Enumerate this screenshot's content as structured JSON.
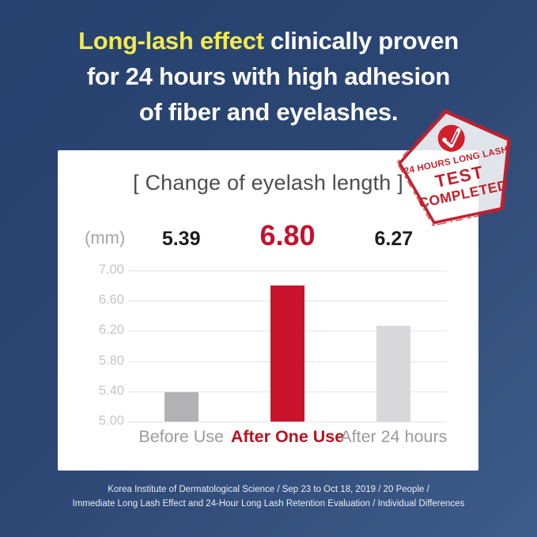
{
  "heading": {
    "highlight": "Long-lash effect",
    "line1_rest": " clinically proven",
    "line2": "for 24 hours with high adhesion",
    "line3": "of fiber and eyelashes.",
    "highlight_color": "#f2ea50",
    "text_color": "#fdfdfd"
  },
  "stamp": {
    "line1": "24 HOURS LONG LASH",
    "line2": "TEST",
    "line3": "COMPLETED",
    "text_color": "#c3202c",
    "border_color": "#c3202c",
    "badge_color": "#d31f2b",
    "icon": "check-icon"
  },
  "chart_data": {
    "type": "bar",
    "title": "[ Change of eyelash length ]",
    "unit_label": "(mm)",
    "categories": [
      "Before Use",
      "After One Use",
      "After 24 hours"
    ],
    "values": [
      5.39,
      6.8,
      6.27
    ],
    "value_labels": [
      "5.39",
      "6.80",
      "6.27"
    ],
    "highlight_index": 1,
    "ylim": [
      5.0,
      7.0
    ],
    "yticks": [
      "7.00",
      "6.60",
      "6.20",
      "5.80",
      "5.40",
      "5.00"
    ],
    "grid": true,
    "legend": "none",
    "bar_colors": [
      "#b2b2b4",
      "#c9122b",
      "#d8d8da"
    ],
    "value_color": "#1c1c1c",
    "value_highlight_color": "#c8102e",
    "category_color": "#9b9b9b",
    "category_highlight_color": "#b5131f"
  },
  "footer": {
    "line1": "Korea Institute of Dermatological Science / Sep 23 to Oct 18, 2019 / 20 People /",
    "line2": "Immediate Long Lash Effect and 24-Hour Long Lash Retention Evaluation / Individual Differences"
  }
}
